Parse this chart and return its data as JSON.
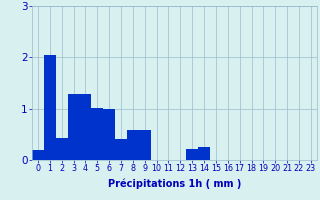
{
  "values": [
    0.2,
    2.05,
    0.42,
    1.28,
    1.28,
    1.02,
    1.0,
    0.4,
    0.58,
    0.58,
    0.0,
    0.0,
    0.0,
    0.22,
    0.25,
    0.0,
    0.0,
    0.0,
    0.0,
    0.0,
    0.0,
    0.0,
    0.0,
    0.0
  ],
  "xlabel": "Précipitations 1h ( mm )",
  "ylim": [
    0,
    3.0
  ],
  "yticks": [
    0,
    1,
    2,
    3
  ],
  "bar_color": "#0033cc",
  "bg_color": "#d8f0f0",
  "grid_color": "#99bbcc",
  "tick_color": "#0000bb",
  "xlabel_color": "#0000bb",
  "xlabel_fontsize": 7.0,
  "ytick_fontsize": 7.5,
  "xtick_fontsize": 5.8
}
